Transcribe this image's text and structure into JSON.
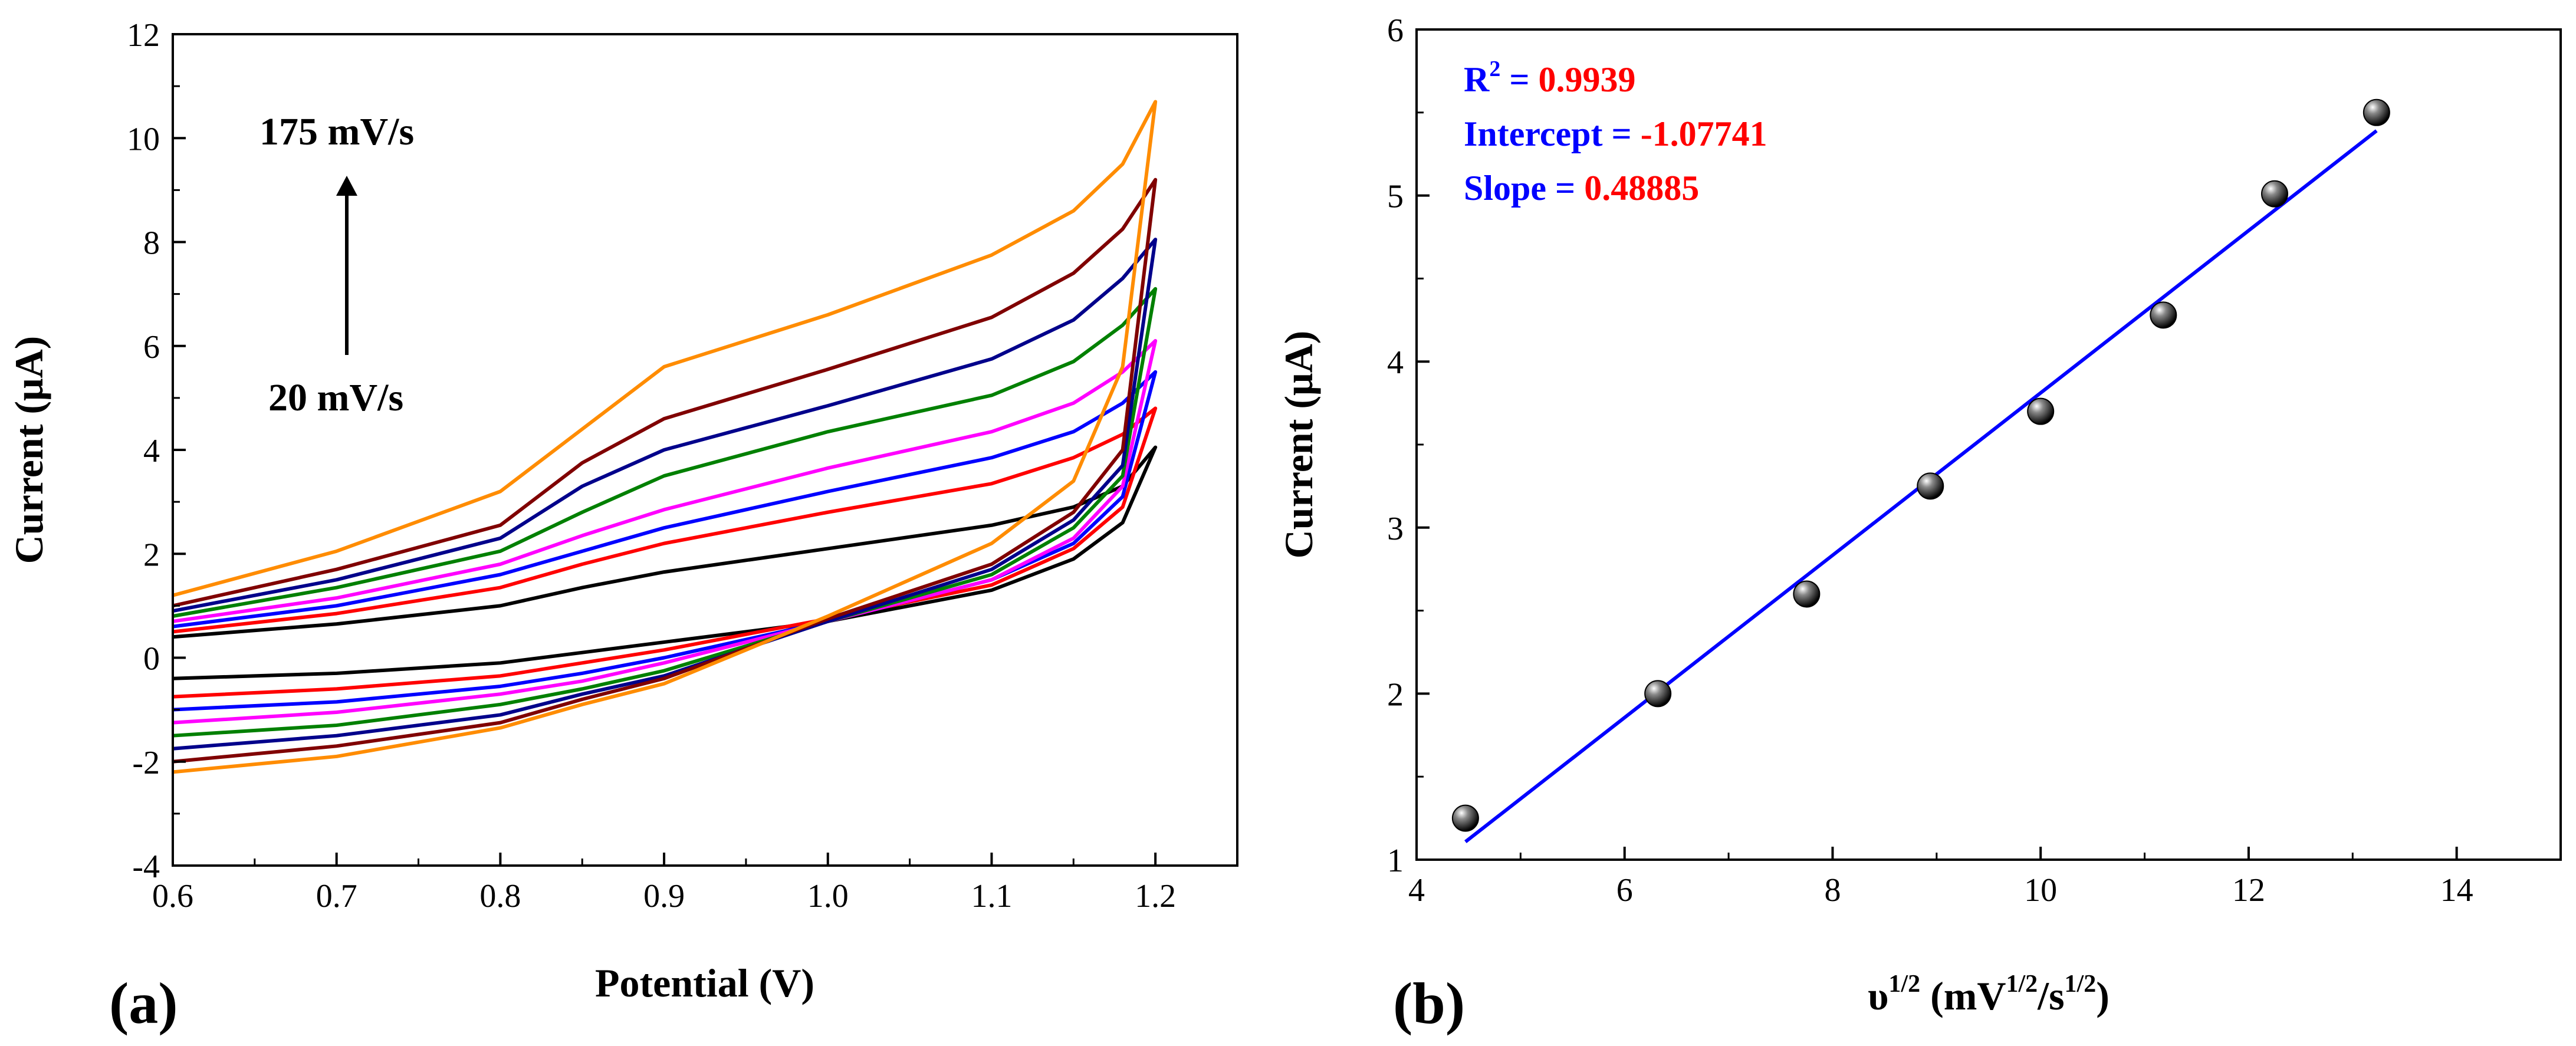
{
  "chart_data": [
    {
      "type": "line",
      "panel_label": "(a)",
      "xlabel": "Potential (V)",
      "ylabel": "Current (μA)",
      "xlim": [
        0.6,
        1.25
      ],
      "ylim": [
        -4,
        12
      ],
      "xticks": [
        "0.6",
        "0.7",
        "0.8",
        "0.9",
        "1.0",
        "1.1",
        "1.2"
      ],
      "yticks": [
        "-4",
        "-2",
        "0",
        "2",
        "4",
        "6",
        "8",
        "10",
        "12"
      ],
      "annotation_top": "175 mV/s",
      "annotation_bottom": "20 mV/s",
      "x": [
        0.6,
        0.7,
        0.8,
        0.85,
        0.9,
        1.0,
        1.1,
        1.15,
        1.18,
        1.2
      ],
      "series": [
        {
          "color": "#000000",
          "forward": [
            0.4,
            0.65,
            1.0,
            1.35,
            1.65,
            2.1,
            2.55,
            2.9,
            3.3,
            4.05
          ],
          "reverse": [
            -0.4,
            -0.3,
            -0.1,
            0.1,
            0.3,
            0.7,
            1.3,
            1.9,
            2.6,
            4.05
          ]
        },
        {
          "color": "#ff0000",
          "forward": [
            0.5,
            0.85,
            1.35,
            1.8,
            2.2,
            2.8,
            3.35,
            3.85,
            4.3,
            4.8
          ],
          "reverse": [
            -0.75,
            -0.6,
            -0.35,
            -0.1,
            0.15,
            0.75,
            1.4,
            2.1,
            2.9,
            4.8
          ]
        },
        {
          "color": "#0000ff",
          "forward": [
            0.6,
            1.0,
            1.6,
            2.05,
            2.5,
            3.2,
            3.85,
            4.35,
            4.9,
            5.5
          ],
          "reverse": [
            -1.0,
            -0.85,
            -0.55,
            -0.3,
            0.0,
            0.7,
            1.5,
            2.2,
            3.1,
            5.5
          ]
        },
        {
          "color": "#ff00ff",
          "forward": [
            0.7,
            1.15,
            1.8,
            2.35,
            2.85,
            3.65,
            4.35,
            4.9,
            5.5,
            6.1
          ],
          "reverse": [
            -1.25,
            -1.05,
            -0.7,
            -0.45,
            -0.1,
            0.7,
            1.5,
            2.3,
            3.3,
            6.1
          ]
        },
        {
          "color": "#008000",
          "forward": [
            0.8,
            1.35,
            2.05,
            2.8,
            3.5,
            4.35,
            5.05,
            5.7,
            6.4,
            7.1
          ],
          "reverse": [
            -1.5,
            -1.3,
            -0.9,
            -0.6,
            -0.25,
            0.7,
            1.6,
            2.5,
            3.5,
            7.1
          ]
        },
        {
          "color": "#00008b",
          "forward": [
            0.9,
            1.5,
            2.3,
            3.3,
            4.0,
            4.85,
            5.75,
            6.5,
            7.3,
            8.05
          ],
          "reverse": [
            -1.75,
            -1.5,
            -1.1,
            -0.7,
            -0.35,
            0.7,
            1.7,
            2.65,
            3.7,
            8.05
          ]
        },
        {
          "color": "#800000",
          "forward": [
            1.0,
            1.7,
            2.55,
            3.75,
            4.6,
            5.55,
            6.55,
            7.4,
            8.25,
            9.2
          ],
          "reverse": [
            -2.0,
            -1.7,
            -1.25,
            -0.8,
            -0.4,
            0.75,
            1.8,
            2.8,
            4.0,
            9.2
          ]
        },
        {
          "color": "#ff8c00",
          "forward": [
            1.2,
            2.05,
            3.2,
            4.4,
            5.6,
            6.6,
            7.75,
            8.6,
            9.5,
            10.7
          ],
          "reverse": [
            -2.2,
            -1.9,
            -1.35,
            -0.9,
            -0.5,
            0.8,
            2.2,
            3.4,
            5.6,
            10.7
          ]
        }
      ]
    },
    {
      "type": "scatter",
      "panel_label": "(b)",
      "xlabel_base": "υ",
      "xlabel_sup": "1/2",
      "xlabel_rest_1": " (mV",
      "xlabel_sup2": "1/2",
      "xlabel_rest_2": "/s",
      "xlabel_sup3": "1/2",
      "xlabel_rest_3": ")",
      "ylabel": "Current (μA)",
      "xlim": [
        4,
        15
      ],
      "ylim": [
        1,
        6
      ],
      "xticks": [
        "4",
        "6",
        "8",
        "10",
        "12",
        "14"
      ],
      "yticks": [
        "1",
        "2",
        "3",
        "4",
        "5",
        "6"
      ],
      "x": [
        4.47,
        6.32,
        7.75,
        8.94,
        10.0,
        11.18,
        12.25,
        13.23
      ],
      "y": [
        1.25,
        2.0,
        2.6,
        3.25,
        3.7,
        4.28,
        5.01,
        5.5
      ],
      "fit": {
        "intercept": -1.07741,
        "slope": 0.48885,
        "x_range": [
          4.47,
          13.23
        ],
        "color": "#0000ff"
      },
      "stats": {
        "r2_label": "R",
        "r2_sup": "2",
        "r2_eq": " = ",
        "r2_value": "0.9939",
        "intercept_label": "Intercept = ",
        "intercept_value": "-1.07741",
        "slope_label": "Slope = ",
        "slope_value": "0.48885",
        "label_color": "#0000ff",
        "value_color": "#ff0000"
      }
    }
  ]
}
